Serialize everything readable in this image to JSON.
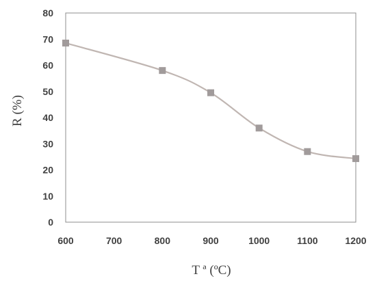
{
  "chart_data": {
    "type": "line",
    "title": "",
    "xlabel": "T ª (ºC)",
    "ylabel": "R (%)",
    "x": [
      600,
      800,
      900,
      1000,
      1100,
      1200
    ],
    "series": [
      {
        "values": [
          68.5,
          58,
          49.5,
          36,
          27,
          24.3
        ]
      }
    ],
    "xlim": [
      600,
      1200
    ],
    "ylim": [
      0,
      80
    ],
    "xticks": [
      "600",
      "700",
      "800",
      "900",
      "1000",
      "1100",
      "1200"
    ],
    "yticks": [
      "0",
      "10",
      "20",
      "30",
      "40",
      "50",
      "60",
      "70",
      "80"
    ],
    "grid": false,
    "line_color": "#c0b6b2",
    "marker_color": "#a19b9b",
    "marker": "square",
    "smooth": true
  }
}
